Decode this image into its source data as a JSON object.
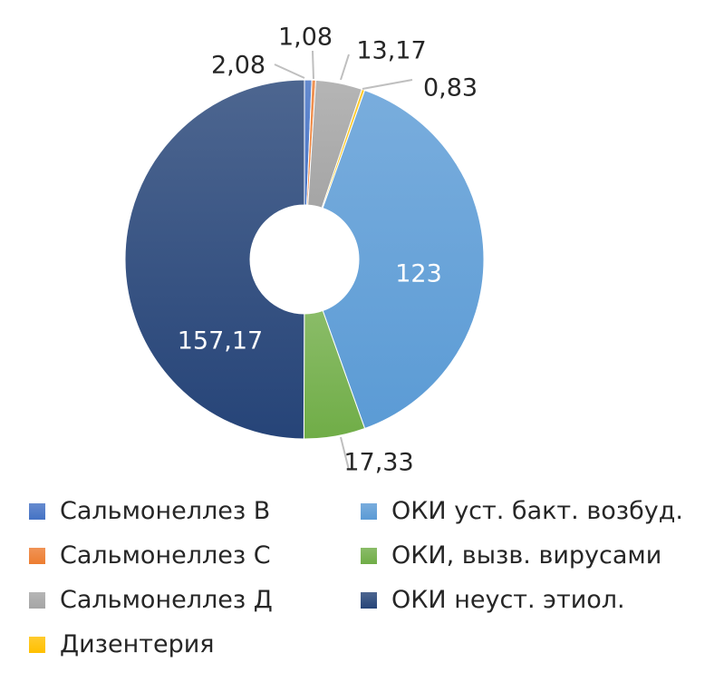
{
  "chart_data": {
    "type": "pie",
    "donut": true,
    "slices": [
      {
        "name": "Сальмонеллез В",
        "value": 2.08,
        "label": "2,08",
        "color": "#4472c4"
      },
      {
        "name": "Сальмонеллез С",
        "value": 1.08,
        "label": "1,08",
        "color": "#ed7d31"
      },
      {
        "name": "Сальмонеллез Д",
        "value": 13.17,
        "label": "13,17",
        "color": "#a5a5a5"
      },
      {
        "name": "Дизентерия",
        "value": 0.83,
        "label": "0,83",
        "color": "#ffc000"
      },
      {
        "name": "ОКИ уст. бакт. возбуд.",
        "value": 123,
        "label": "123",
        "color": "#5b9bd5"
      },
      {
        "name": "ОКИ, вызв. вирусами",
        "value": 17.33,
        "label": "17,33",
        "color": "#70ad47"
      },
      {
        "name": "ОКИ неуст. этиол.",
        "value": 157.17,
        "label": "157,17",
        "color": "#264478"
      }
    ],
    "legend_position": "bottom",
    "legend_columns": [
      [
        "Сальмонеллез В",
        "Сальмонеллез С",
        "Сальмонеллез Д",
        "Дизентерия"
      ],
      [
        "ОКИ уст. бакт. возбуд.",
        "ОКИ, вызв. вирусами",
        "ОКИ неуст. этиол."
      ]
    ]
  }
}
